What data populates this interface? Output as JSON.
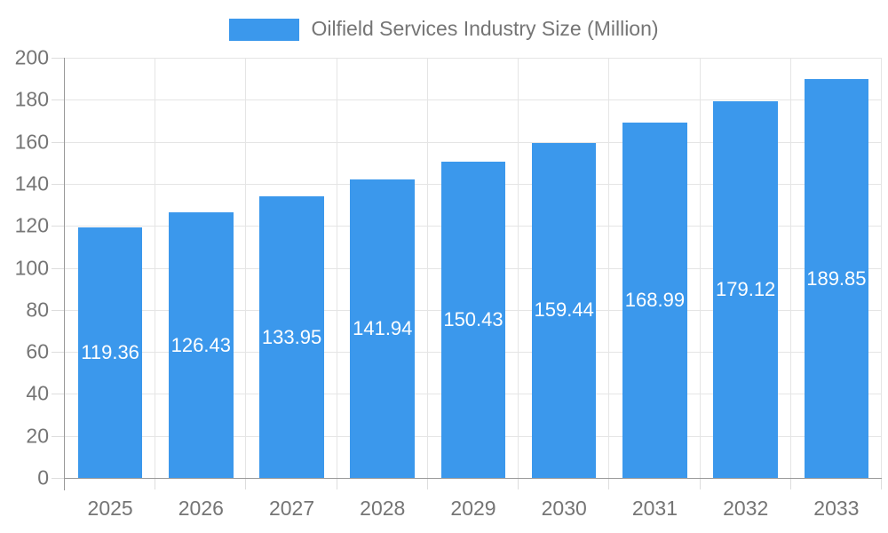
{
  "chart_data": {
    "type": "bar",
    "title": "Oilfield Services Industry Size (Million)",
    "categories": [
      "2025",
      "2026",
      "2027",
      "2028",
      "2029",
      "2030",
      "2031",
      "2032",
      "2033"
    ],
    "values": [
      119.36,
      126.43,
      133.95,
      141.94,
      150.43,
      159.44,
      168.99,
      179.12,
      189.85
    ],
    "xlabel": "",
    "ylabel": "",
    "ylim": [
      0,
      200
    ],
    "yticks": [
      0,
      20,
      40,
      60,
      80,
      100,
      120,
      140,
      160,
      180,
      200
    ],
    "grid": true,
    "legend_position": "top-center",
    "value_label_position": "inside-center",
    "bar_width_ratio": 0.71,
    "colors": {
      "bar": "#3B98EC",
      "bar_label": "#FFFFFF",
      "axis_text": "#757575",
      "axis_line": "#999999",
      "gridline": "#E5E5E5",
      "tick": "#DDDDDD",
      "background": "#FFFFFF"
    }
  }
}
